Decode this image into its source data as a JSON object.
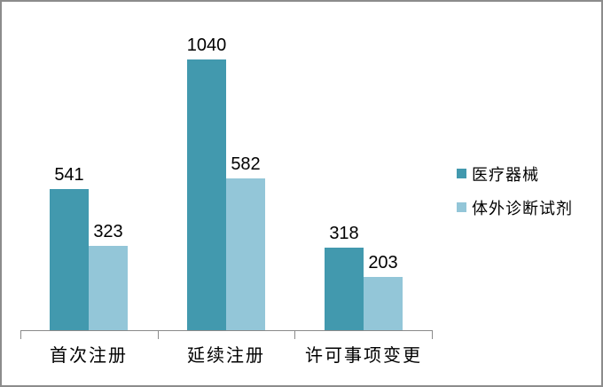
{
  "chart": {
    "frame_border_color": "#8C8C8C",
    "background_color": "#FFFFFF",
    "axis_color": "#8A8A8A",
    "text_color": "#000000"
  },
  "chart_data": {
    "type": "bar",
    "categories": [
      "首次注册",
      "延续注册",
      "许可事项变更"
    ],
    "series": [
      {
        "name": "医疗器械",
        "color": "#4299AE",
        "values": [
          541,
          1040,
          318
        ]
      },
      {
        "name": "体外诊断试剂",
        "color": "#93C6D8",
        "values": [
          323,
          582,
          203
        ]
      }
    ],
    "title": "",
    "xlabel": "",
    "ylabel": "",
    "ylim": [
      0,
      1200
    ],
    "grid": false,
    "legend_position": "right",
    "data_labels": true
  }
}
